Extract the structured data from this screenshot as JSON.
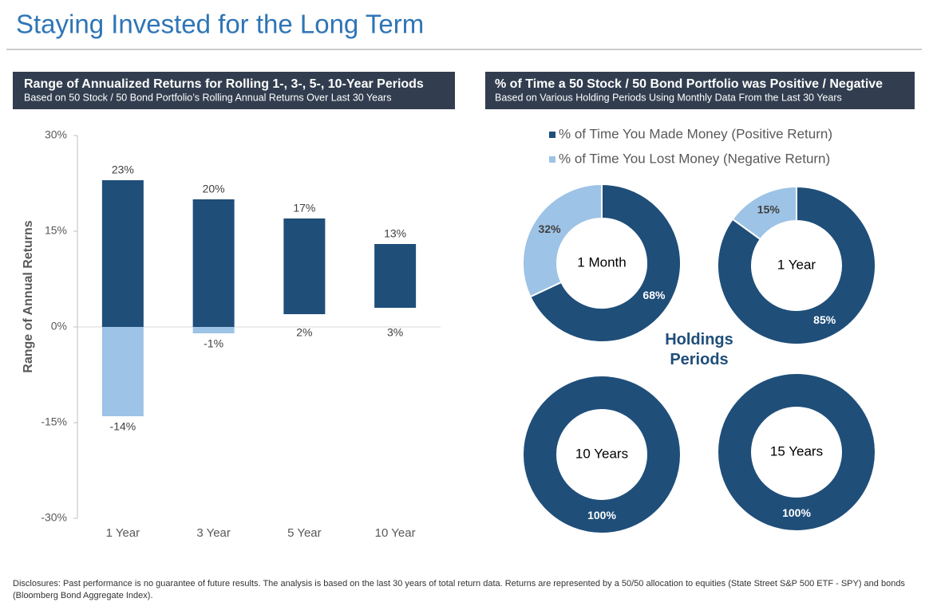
{
  "title": "Staying Invested for the Long Term",
  "chart_data": [
    {
      "type": "range-bar",
      "title": "Range of Annualized Returns for Rolling 1-, 3-, 5-, 10-Year Periods",
      "subtitle": "Based on 50 Stock / 50 Bond Portfolio’s Rolling Annual Returns Over Last 30 Years",
      "y_label": "Range of Annual Returns",
      "categories": [
        "1 Year",
        "3 Year",
        "5 Year",
        "10 Year"
      ],
      "high": [
        23,
        20,
        17,
        13
      ],
      "high_labels": [
        "23%",
        "20%",
        "17%",
        "13%"
      ],
      "low": [
        -14,
        -1,
        2,
        3
      ],
      "low_labels": [
        "-14%",
        "-1%",
        "2%",
        "3%"
      ],
      "color": "#1f4e79",
      "negative_color": "#9dc3e6",
      "ylim": [
        -30,
        30
      ],
      "yticks": [
        {
          "value": -30,
          "label": "-30%"
        },
        {
          "value": -15,
          "label": "-15%"
        },
        {
          "value": 0,
          "label": "0%"
        },
        {
          "value": 15,
          "label": "15%"
        },
        {
          "value": 30,
          "label": "30%"
        }
      ]
    },
    {
      "type": "donut",
      "title": "% of Time a 50 Stock / 50 Bond Portfolio was Positive / Negative",
      "subtitle": "Based on Various Holding Periods Using Monthly Data From the Last 30 Years",
      "center_label": "Holdings Periods",
      "series": [
        {
          "name": "% of Time You Made Money (Positive Return)",
          "color": "#1f4e79"
        },
        {
          "name": "% of Time You Lost Money (Negative Return)",
          "color": "#9dc3e6"
        }
      ],
      "charts": [
        {
          "label": "1 Month",
          "values": [
            68,
            32
          ],
          "value_labels": [
            "68%",
            "32%"
          ]
        },
        {
          "label": "1 Year",
          "values": [
            85,
            15
          ],
          "value_labels": [
            "85%",
            "15%"
          ]
        },
        {
          "label": "10 Years",
          "values": [
            100
          ],
          "value_labels": [
            "100%"
          ]
        },
        {
          "label": "15 Years",
          "values": [
            100
          ],
          "value_labels": [
            "100%"
          ]
        }
      ]
    }
  ],
  "disclosure": "Disclosures: Past performance is no guarantee of future results. The analysis is based on the last 30 years of total return data. Returns are represented by a 50/50 allocation to equities (State Street S&P 500 ETF - SPY) and bonds (Bloomberg Bond Aggregate Index)."
}
